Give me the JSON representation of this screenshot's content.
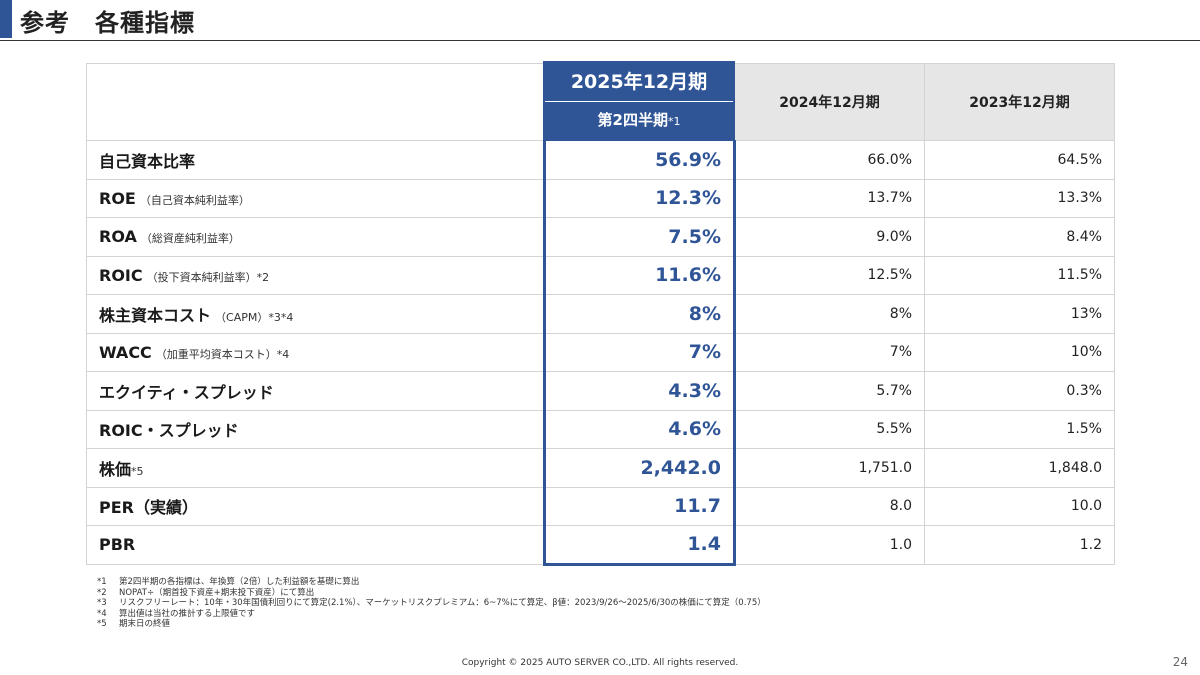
{
  "page": {
    "title": "参考　各種指標",
    "page_number": "24",
    "copyright": "Copyright © 2025 AUTO SERVER CO.,LTD.  All rights reserved."
  },
  "table": {
    "columns": {
      "current_period": "2025年12月期",
      "current_sub": "第2四半期",
      "current_sub_note": "*1",
      "prev1": "2024年12月期",
      "prev2": "2023年12月期"
    },
    "rows": [
      {
        "label": "自己資本比率",
        "note": "",
        "current": "56.9%",
        "prev1": "66.0%",
        "prev2": "64.5%"
      },
      {
        "label": "ROE",
        "note": "（自己資本純利益率）",
        "current": "12.3%",
        "prev1": "13.7%",
        "prev2": "13.3%"
      },
      {
        "label": "ROA",
        "note": "（総資産純利益率）",
        "current": "7.5%",
        "prev1": "9.0%",
        "prev2": "8.4%"
      },
      {
        "label": "ROIC",
        "note": "（投下資本純利益率）*2",
        "current": "11.6%",
        "prev1": "12.5%",
        "prev2": "11.5%"
      },
      {
        "label": "株主資本コスト",
        "note": "（CAPM）*3*4",
        "current": "8%",
        "prev1": "8%",
        "prev2": "13%"
      },
      {
        "label": "WACC",
        "note": "（加重平均資本コスト）*4",
        "current": "7%",
        "prev1": "7%",
        "prev2": "10%"
      },
      {
        "label": "エクイティ・スプレッド",
        "note": "",
        "current": "4.3%",
        "prev1": "5.7%",
        "prev2": "0.3%"
      },
      {
        "label": "ROIC・スプレッド",
        "note": "",
        "current": "4.6%",
        "prev1": "5.5%",
        "prev2": "1.5%"
      },
      {
        "label": "株価",
        "note": "*5",
        "current": "2,442.0",
        "prev1": "1,751.0",
        "prev2": "1,848.0"
      },
      {
        "label": "PER（実績）",
        "note": "",
        "current": "11.7",
        "prev1": "8.0",
        "prev2": "10.0"
      },
      {
        "label": "PBR",
        "note": "",
        "current": "1.4",
        "prev1": "1.0",
        "prev2": "1.2"
      }
    ]
  },
  "footnotes": [
    {
      "num": "*1",
      "text": "第2四半期の各指標は、年換算（2倍）した利益額を基礎に算出"
    },
    {
      "num": "*2",
      "text": "NOPAT÷（期首投下資産+期末投下資産）にて算出"
    },
    {
      "num": "*3",
      "text": "リスクフリーレート：10年・30年国債利回りにて算定(2.1%）、マーケットリスクプレミアム：6~7%にて算定、β値：2023/9/26～2025/6/30の株価にて算定（0.75）"
    },
    {
      "num": "*4",
      "text": "算出値は当社の推計する上限値です"
    },
    {
      "num": "*5",
      "text": "期末日の終値"
    }
  ],
  "colors": {
    "accent": "#2f5597",
    "header_bg": "#e6e6e6"
  }
}
